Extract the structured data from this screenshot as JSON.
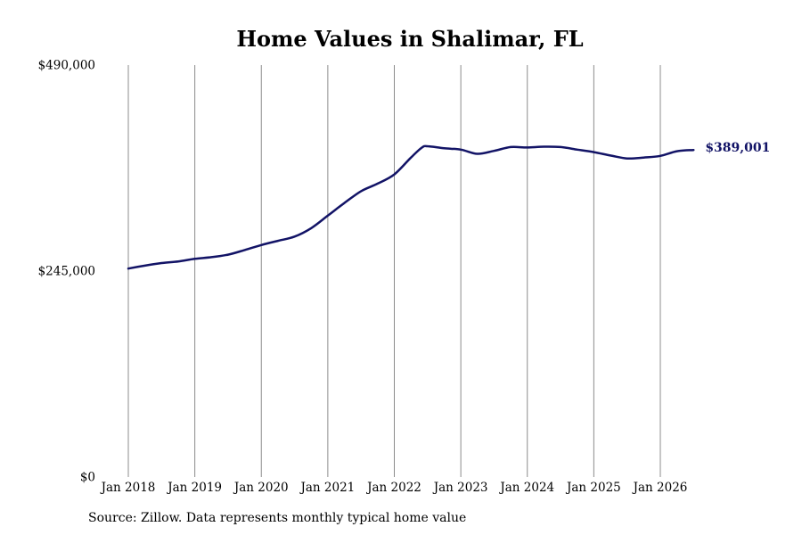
{
  "chart_data": {
    "type": "line",
    "title": "Home Values in Shalimar, FL",
    "xlabel": "",
    "ylabel": "",
    "ylim": [
      0,
      490000
    ],
    "y_ticks": [
      0,
      245000,
      490000
    ],
    "y_tick_labels": [
      "$0",
      "$245,000",
      "$490,000"
    ],
    "x_range": [
      "2018-01",
      "2026-09"
    ],
    "x_ticks": [
      "2018-01",
      "2019-01",
      "2020-01",
      "2021-01",
      "2022-01",
      "2023-01",
      "2024-01",
      "2025-01",
      "2026-01"
    ],
    "x_tick_labels": [
      "Jan 2018",
      "Jan 2019",
      "Jan 2020",
      "Jan 2021",
      "Jan 2022",
      "Jan 2023",
      "Jan 2024",
      "Jan 2025",
      "Jan 2026"
    ],
    "grid": "vertical",
    "line_color": "#121366",
    "end_label": "$389,001",
    "series": [
      {
        "name": "",
        "points": [
          [
            "2018-01",
            248000
          ],
          [
            "2018-04",
            251500
          ],
          [
            "2018-07",
            254500
          ],
          [
            "2018-10",
            256500
          ],
          [
            "2019-01",
            259500
          ],
          [
            "2019-04",
            261500
          ],
          [
            "2019-07",
            264500
          ],
          [
            "2019-10",
            270000
          ],
          [
            "2020-01",
            276000
          ],
          [
            "2020-04",
            281000
          ],
          [
            "2020-07",
            286000
          ],
          [
            "2020-10",
            296000
          ],
          [
            "2021-01",
            311000
          ],
          [
            "2021-04",
            326000
          ],
          [
            "2021-07",
            340000
          ],
          [
            "2021-10",
            349000
          ],
          [
            "2022-01",
            360000
          ],
          [
            "2022-04",
            380000
          ],
          [
            "2022-06",
            392000
          ],
          [
            "2022-07",
            393500
          ],
          [
            "2022-10",
            391000
          ],
          [
            "2023-01",
            389500
          ],
          [
            "2023-04",
            384500
          ],
          [
            "2023-07",
            388000
          ],
          [
            "2023-10",
            392500
          ],
          [
            "2024-01",
            392000
          ],
          [
            "2024-04",
            393000
          ],
          [
            "2024-07",
            392500
          ],
          [
            "2024-10",
            389500
          ],
          [
            "2025-01",
            386500
          ],
          [
            "2025-04",
            382500
          ],
          [
            "2025-07",
            379000
          ],
          [
            "2025-10",
            380000
          ],
          [
            "2026-01",
            382000
          ],
          [
            "2026-04",
            387500
          ],
          [
            "2026-07",
            389001
          ]
        ]
      }
    ]
  },
  "footer": {
    "source": "Source: Zillow. Data represents monthly typical home value"
  }
}
